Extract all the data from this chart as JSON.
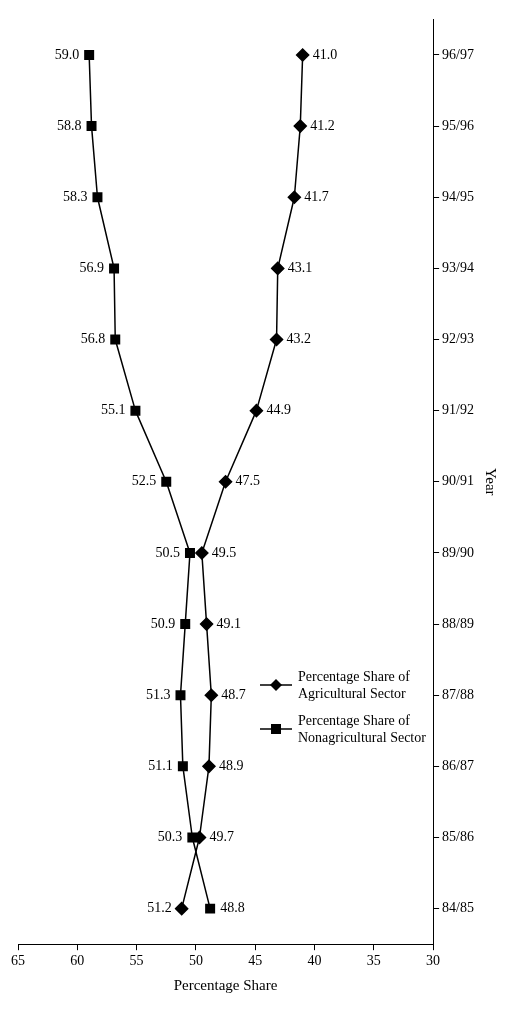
{
  "chart_data": {
    "type": "line",
    "orientation": "horizontal",
    "xlabel": "Percentage Share",
    "ylabel": "Year",
    "categories": [
      "96/97",
      "95/96",
      "94/95",
      "93/94",
      "92/93",
      "91/92",
      "90/91",
      "89/90",
      "88/89",
      "87/88",
      "86/87",
      "85/86",
      "84/85"
    ],
    "series": [
      {
        "name": "Percentage Share of Agricultural Sector",
        "color": "#000000",
        "marker": "diamond",
        "values": [
          41.0,
          41.2,
          41.7,
          43.1,
          43.2,
          44.9,
          47.5,
          49.5,
          49.1,
          48.7,
          48.9,
          49.7,
          51.2
        ],
        "value_labels": [
          "41.0",
          "41.2",
          "41.7",
          "43.1",
          "43.2",
          "44.9",
          "47.5",
          "49.5",
          "49.1",
          "48.7",
          "48.9",
          "49.7",
          "51.2"
        ]
      },
      {
        "name": "Percentage Share of Nonagricultural Sector",
        "color": "#000000",
        "marker": "square",
        "values": [
          59.0,
          58.8,
          58.3,
          56.9,
          56.8,
          55.1,
          52.5,
          50.5,
          50.9,
          51.3,
          51.1,
          50.3,
          48.8
        ],
        "value_labels": [
          "59.0",
          "58.8",
          "58.3",
          "56.9",
          "56.8",
          "55.1",
          "52.5",
          "50.5",
          "50.9",
          "51.3",
          "51.1",
          "50.3",
          "48.8"
        ]
      }
    ],
    "xlim": [
      65,
      30
    ],
    "xticks": [
      65,
      60,
      55,
      50,
      45,
      40,
      35,
      30
    ],
    "grid": false,
    "legend": "bottom right"
  }
}
